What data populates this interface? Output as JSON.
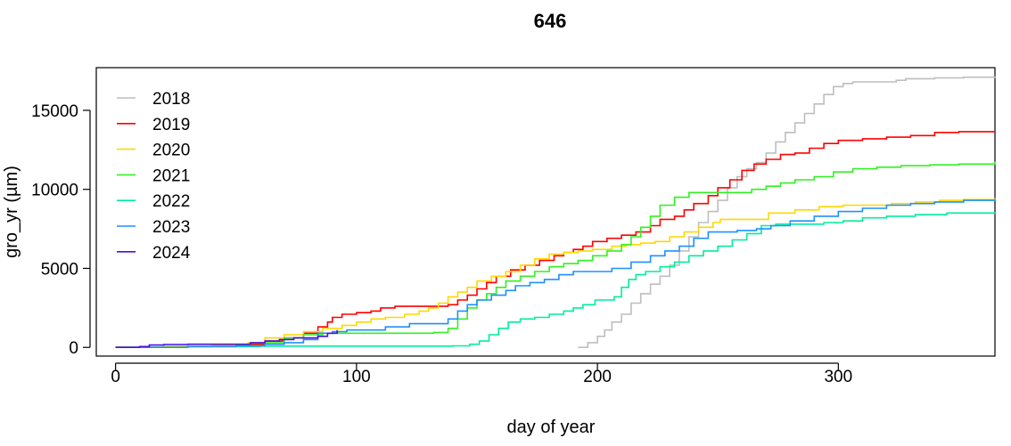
{
  "chart_data": {
    "type": "line",
    "title": "646",
    "xlabel": "day of year",
    "ylabel": "gro_yr (µm)",
    "xlim": [
      -8,
      365
    ],
    "ylim": [
      -550,
      17700
    ],
    "xticks": [
      0,
      100,
      200,
      300
    ],
    "yticks": [
      0,
      5000,
      10000,
      15000
    ],
    "grid": false,
    "legend_position": "top-left",
    "series": [
      {
        "name": "2018",
        "color": "#bebebe",
        "points": [
          [
            192,
            0
          ],
          [
            196,
            300
          ],
          [
            200,
            700
          ],
          [
            203,
            1100
          ],
          [
            206,
            1600
          ],
          [
            210,
            2100
          ],
          [
            214,
            2800
          ],
          [
            218,
            3400
          ],
          [
            222,
            4000
          ],
          [
            226,
            4500
          ],
          [
            230,
            5200
          ],
          [
            234,
            6100
          ],
          [
            238,
            7000
          ],
          [
            242,
            7900
          ],
          [
            246,
            8600
          ],
          [
            250,
            9300
          ],
          [
            254,
            10100
          ],
          [
            258,
            10800
          ],
          [
            262,
            11300
          ],
          [
            266,
            11700
          ],
          [
            270,
            12300
          ],
          [
            274,
            13000
          ],
          [
            278,
            13600
          ],
          [
            282,
            14200
          ],
          [
            286,
            14800
          ],
          [
            290,
            15400
          ],
          [
            294,
            16000
          ],
          [
            298,
            16500
          ],
          [
            302,
            16700
          ],
          [
            306,
            16800
          ],
          [
            312,
            16800
          ],
          [
            318,
            16800
          ],
          [
            324,
            16900
          ],
          [
            328,
            17000
          ],
          [
            340,
            17050
          ],
          [
            352,
            17100
          ],
          [
            365,
            17150
          ]
        ]
      },
      {
        "name": "2019",
        "color": "#ff0000",
        "points": [
          [
            0,
            0
          ],
          [
            20,
            50
          ],
          [
            40,
            100
          ],
          [
            55,
            200
          ],
          [
            62,
            400
          ],
          [
            70,
            600
          ],
          [
            78,
            900
          ],
          [
            84,
            1300
          ],
          [
            88,
            1600
          ],
          [
            90,
            1900
          ],
          [
            94,
            2100
          ],
          [
            100,
            2200
          ],
          [
            106,
            2300
          ],
          [
            110,
            2500
          ],
          [
            116,
            2600
          ],
          [
            124,
            2600
          ],
          [
            132,
            2600
          ],
          [
            138,
            2700
          ],
          [
            142,
            3000
          ],
          [
            146,
            3300
          ],
          [
            150,
            3700
          ],
          [
            154,
            4100
          ],
          [
            158,
            4500
          ],
          [
            164,
            4900
          ],
          [
            170,
            5200
          ],
          [
            176,
            5500
          ],
          [
            182,
            5800
          ],
          [
            186,
            6000
          ],
          [
            190,
            6200
          ],
          [
            194,
            6400
          ],
          [
            198,
            6700
          ],
          [
            204,
            6900
          ],
          [
            210,
            7100
          ],
          [
            216,
            7300
          ],
          [
            222,
            7700
          ],
          [
            226,
            8100
          ],
          [
            232,
            8300
          ],
          [
            236,
            8700
          ],
          [
            240,
            9100
          ],
          [
            246,
            9600
          ],
          [
            250,
            10100
          ],
          [
            255,
            10600
          ],
          [
            260,
            11200
          ],
          [
            265,
            11600
          ],
          [
            270,
            11900
          ],
          [
            276,
            12200
          ],
          [
            282,
            12300
          ],
          [
            288,
            12600
          ],
          [
            294,
            12900
          ],
          [
            300,
            13100
          ],
          [
            310,
            13200
          ],
          [
            320,
            13300
          ],
          [
            330,
            13400
          ],
          [
            340,
            13600
          ],
          [
            350,
            13650
          ],
          [
            365,
            13650
          ]
        ]
      },
      {
        "name": "2020",
        "color": "#ffd700",
        "points": [
          [
            0,
            0
          ],
          [
            20,
            80
          ],
          [
            40,
            150
          ],
          [
            55,
            300
          ],
          [
            62,
            600
          ],
          [
            70,
            800
          ],
          [
            78,
            1000
          ],
          [
            86,
            1200
          ],
          [
            94,
            1400
          ],
          [
            100,
            1600
          ],
          [
            106,
            1800
          ],
          [
            112,
            1900
          ],
          [
            120,
            2100
          ],
          [
            126,
            2300
          ],
          [
            130,
            2500
          ],
          [
            134,
            2800
          ],
          [
            138,
            3200
          ],
          [
            142,
            3500
          ],
          [
            146,
            3800
          ],
          [
            150,
            4200
          ],
          [
            156,
            4500
          ],
          [
            162,
            4800
          ],
          [
            168,
            5200
          ],
          [
            174,
            5600
          ],
          [
            180,
            5900
          ],
          [
            186,
            6000
          ],
          [
            192,
            6100
          ],
          [
            198,
            6200
          ],
          [
            206,
            6400
          ],
          [
            212,
            6500
          ],
          [
            218,
            6600
          ],
          [
            224,
            6700
          ],
          [
            230,
            7000
          ],
          [
            236,
            7300
          ],
          [
            242,
            7600
          ],
          [
            248,
            7900
          ],
          [
            251,
            8100
          ],
          [
            271,
            8500
          ],
          [
            282,
            8700
          ],
          [
            292,
            8900
          ],
          [
            302,
            9000
          ],
          [
            312,
            9000
          ],
          [
            322,
            9100
          ],
          [
            332,
            9200
          ],
          [
            342,
            9300
          ],
          [
            352,
            9350
          ],
          [
            365,
            9450
          ]
        ]
      },
      {
        "name": "2021",
        "color": "#32f022",
        "points": [
          [
            0,
            0
          ],
          [
            30,
            50
          ],
          [
            50,
            100
          ],
          [
            62,
            300
          ],
          [
            70,
            600
          ],
          [
            78,
            800
          ],
          [
            86,
            900
          ],
          [
            100,
            900
          ],
          [
            116,
            900
          ],
          [
            126,
            900
          ],
          [
            132,
            950
          ],
          [
            138,
            1200
          ],
          [
            142,
            1800
          ],
          [
            146,
            2500
          ],
          [
            150,
            3000
          ],
          [
            154,
            3400
          ],
          [
            158,
            3800
          ],
          [
            162,
            4200
          ],
          [
            168,
            4500
          ],
          [
            174,
            4800
          ],
          [
            180,
            5100
          ],
          [
            186,
            5300
          ],
          [
            192,
            5500
          ],
          [
            198,
            5800
          ],
          [
            204,
            6100
          ],
          [
            210,
            6500
          ],
          [
            214,
            7000
          ],
          [
            218,
            7600
          ],
          [
            222,
            8300
          ],
          [
            226,
            9000
          ],
          [
            232,
            9500
          ],
          [
            238,
            9800
          ],
          [
            244,
            9800
          ],
          [
            250,
            9800
          ],
          [
            258,
            9800
          ],
          [
            264,
            10000
          ],
          [
            270,
            10200
          ],
          [
            276,
            10400
          ],
          [
            282,
            10600
          ],
          [
            290,
            10800
          ],
          [
            298,
            11100
          ],
          [
            306,
            11300
          ],
          [
            316,
            11400
          ],
          [
            326,
            11500
          ],
          [
            338,
            11550
          ],
          [
            350,
            11600
          ],
          [
            365,
            11750
          ]
        ]
      },
      {
        "name": "2022",
        "color": "#00ee9a",
        "points": [
          [
            0,
            0
          ],
          [
            30,
            50
          ],
          [
            60,
            80
          ],
          [
            80,
            80
          ],
          [
            100,
            80
          ],
          [
            120,
            80
          ],
          [
            140,
            100
          ],
          [
            147,
            200
          ],
          [
            151,
            400
          ],
          [
            155,
            800
          ],
          [
            159,
            1200
          ],
          [
            163,
            1600
          ],
          [
            168,
            1800
          ],
          [
            174,
            1900
          ],
          [
            180,
            2100
          ],
          [
            186,
            2300
          ],
          [
            190,
            2500
          ],
          [
            194,
            2700
          ],
          [
            199,
            3000
          ],
          [
            207,
            3200
          ],
          [
            210,
            3800
          ],
          [
            213,
            4300
          ],
          [
            216,
            4600
          ],
          [
            220,
            4800
          ],
          [
            226,
            5100
          ],
          [
            232,
            5400
          ],
          [
            238,
            5800
          ],
          [
            244,
            6100
          ],
          [
            250,
            6400
          ],
          [
            256,
            6800
          ],
          [
            262,
            7200
          ],
          [
            268,
            7700
          ],
          [
            274,
            7800
          ],
          [
            284,
            7800
          ],
          [
            294,
            7900
          ],
          [
            302,
            8000
          ],
          [
            310,
            8200
          ],
          [
            320,
            8300
          ],
          [
            332,
            8400
          ],
          [
            345,
            8500
          ],
          [
            365,
            8550
          ]
        ]
      },
      {
        "name": "2023",
        "color": "#1e90ff",
        "points": [
          [
            0,
            0
          ],
          [
            30,
            50
          ],
          [
            50,
            100
          ],
          [
            62,
            200
          ],
          [
            70,
            300
          ],
          [
            78,
            500
          ],
          [
            84,
            900
          ],
          [
            90,
            1000
          ],
          [
            96,
            1100
          ],
          [
            104,
            1100
          ],
          [
            112,
            1300
          ],
          [
            122,
            1500
          ],
          [
            132,
            1500
          ],
          [
            138,
            1800
          ],
          [
            142,
            2300
          ],
          [
            146,
            2700
          ],
          [
            150,
            3000
          ],
          [
            156,
            3300
          ],
          [
            162,
            3600
          ],
          [
            166,
            3900
          ],
          [
            172,
            4100
          ],
          [
            178,
            4300
          ],
          [
            184,
            4600
          ],
          [
            190,
            4800
          ],
          [
            198,
            4800
          ],
          [
            206,
            5000
          ],
          [
            214,
            5400
          ],
          [
            222,
            5800
          ],
          [
            228,
            6100
          ],
          [
            234,
            6400
          ],
          [
            240,
            6900
          ],
          [
            246,
            7300
          ],
          [
            252,
            7300
          ],
          [
            258,
            7400
          ],
          [
            266,
            7500
          ],
          [
            272,
            7700
          ],
          [
            280,
            8000
          ],
          [
            290,
            8300
          ],
          [
            300,
            8600
          ],
          [
            310,
            8800
          ],
          [
            320,
            9000
          ],
          [
            330,
            9100
          ],
          [
            340,
            9200
          ],
          [
            352,
            9300
          ],
          [
            365,
            9400
          ]
        ]
      },
      {
        "name": "2024",
        "color": "#4b0fdc",
        "points": [
          [
            0,
            0
          ],
          [
            10,
            50
          ],
          [
            14,
            150
          ],
          [
            20,
            180
          ],
          [
            30,
            200
          ],
          [
            40,
            200
          ],
          [
            50,
            200
          ],
          [
            56,
            300
          ],
          [
            62,
            400
          ],
          [
            68,
            500
          ],
          [
            74,
            600
          ],
          [
            80,
            600
          ],
          [
            84,
            700
          ],
          [
            88,
            900
          ],
          [
            92,
            1100
          ]
        ]
      }
    ]
  }
}
